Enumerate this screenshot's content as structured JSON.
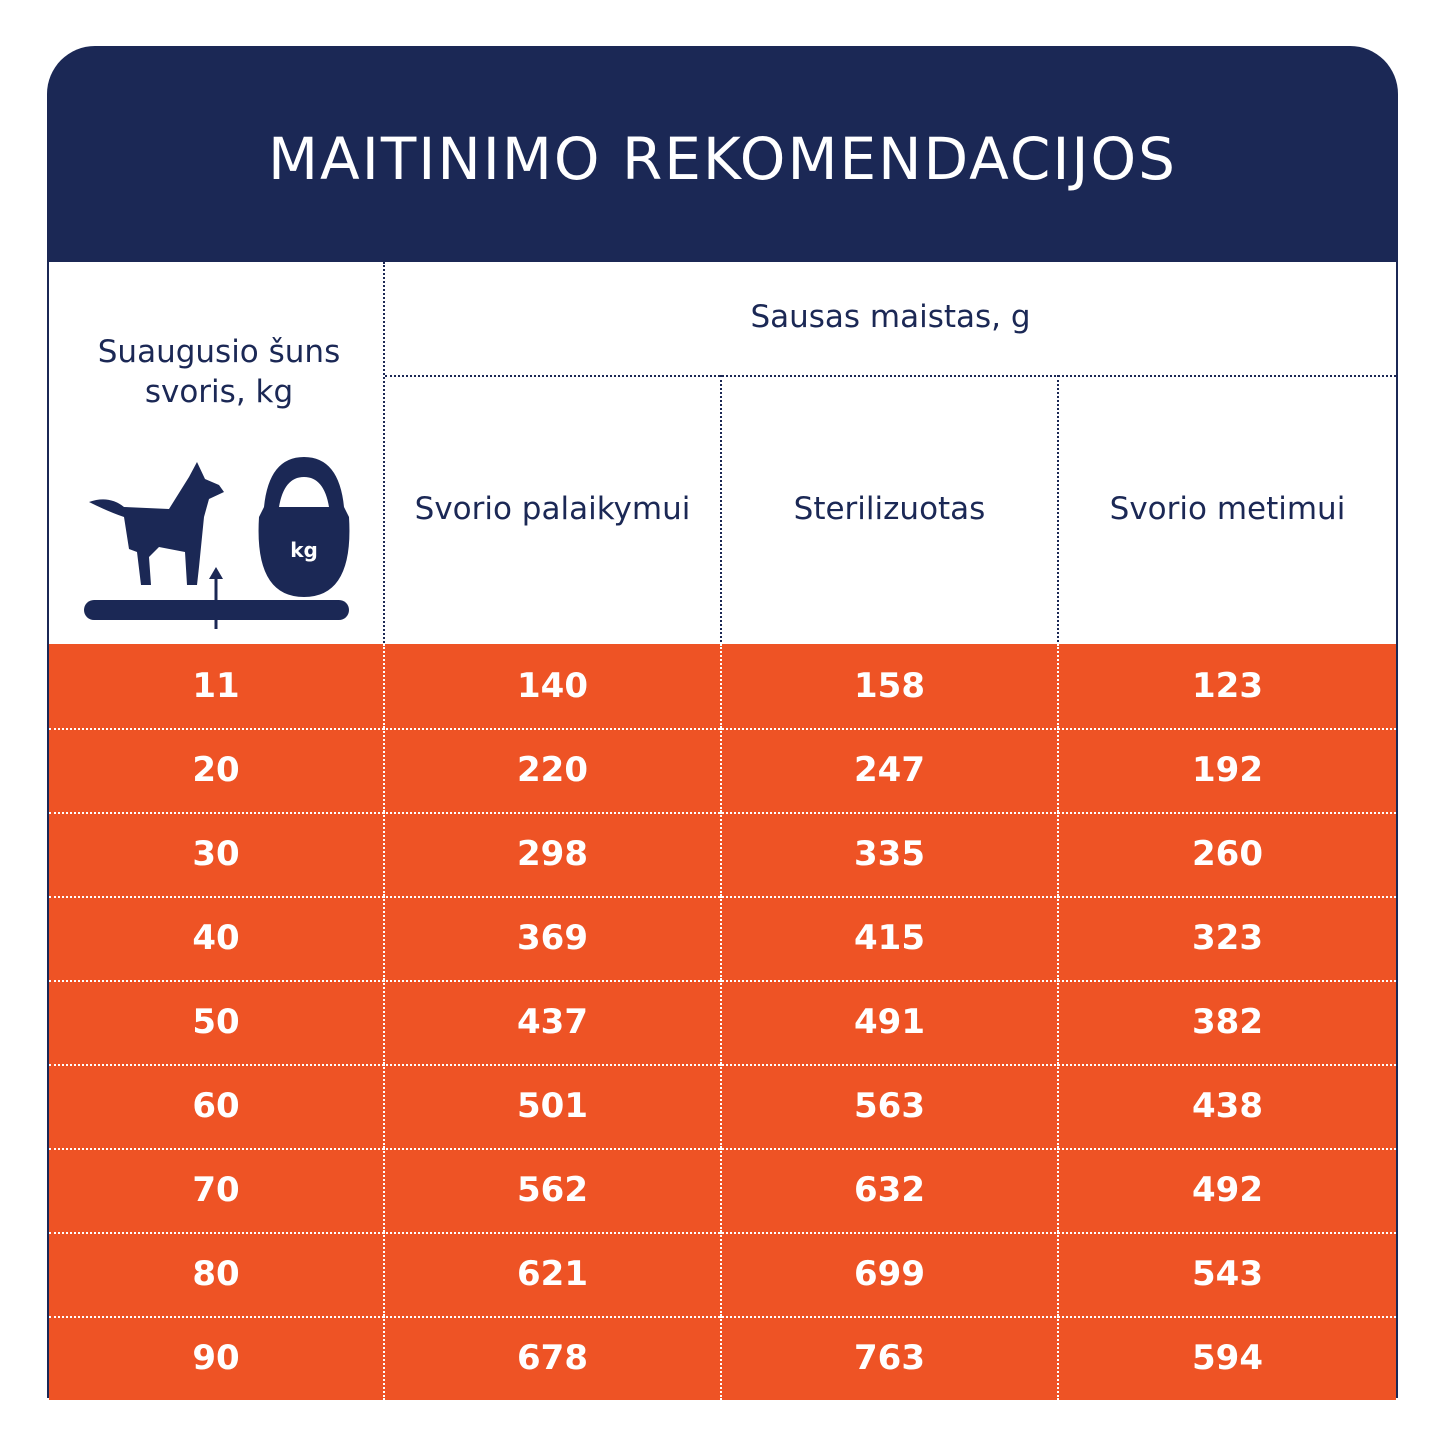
{
  "header": {
    "title": "MAITINIMO REKOMENDACIJOS"
  },
  "table": {
    "weight_header": "Suaugusio šuns svoris, kg",
    "icon_label": "kg",
    "group_header": "Sausas maistas, g",
    "columns": [
      "Svorio palaikymui",
      "Sterilizuotas",
      "Svorio metimui"
    ],
    "rows": [
      [
        11,
        140,
        158,
        123
      ],
      [
        20,
        220,
        247,
        192
      ],
      [
        30,
        298,
        335,
        260
      ],
      [
        40,
        369,
        415,
        323
      ],
      [
        50,
        437,
        491,
        382
      ],
      [
        60,
        501,
        563,
        438
      ],
      [
        70,
        562,
        632,
        492
      ],
      [
        80,
        621,
        699,
        543
      ],
      [
        90,
        678,
        763,
        594
      ]
    ]
  }
}
